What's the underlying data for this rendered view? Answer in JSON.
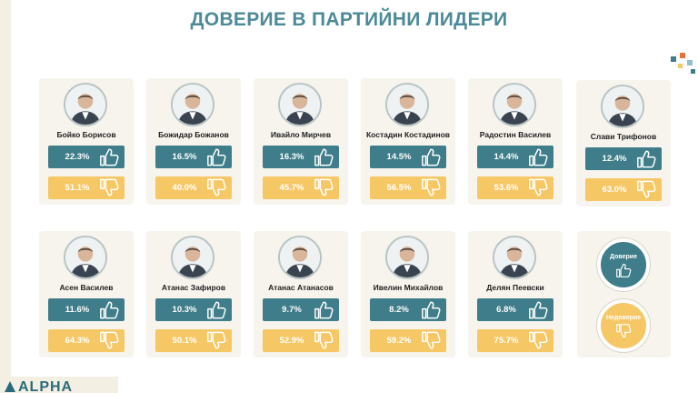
{
  "title": "ДОВЕРИЕ В ПАРТИЙНИ ЛИДЕРИ",
  "chart_data": {
    "type": "table",
    "title": "ДОВЕРИЕ В ПАРТИЙНИ ЛИДЕРИ",
    "columns": [
      "trust",
      "distrust"
    ],
    "leaders": [
      {
        "name": "Бойко Борисов",
        "trust": 22.3,
        "distrust": 51.1,
        "trust_label": "22.3%",
        "distrust_label": "51.1%"
      },
      {
        "name": "Божидар Божанов",
        "trust": 16.5,
        "distrust": 40.0,
        "trust_label": "16.5%",
        "distrust_label": "40.0%"
      },
      {
        "name": "Ивайло Мирчев",
        "trust": 16.3,
        "distrust": 45.7,
        "trust_label": "16.3%",
        "distrust_label": "45.7%"
      },
      {
        "name": "Костадин Костадинов",
        "trust": 14.5,
        "distrust": 56.5,
        "trust_label": "14.5%",
        "distrust_label": "56.5%"
      },
      {
        "name": "Радостин Василев",
        "trust": 14.4,
        "distrust": 53.6,
        "trust_label": "14.4%",
        "distrust_label": "53.6%"
      },
      {
        "name": "Слави Трифонов",
        "trust": 12.4,
        "distrust": 63.0,
        "trust_label": "12.4%",
        "distrust_label": "63.0%"
      },
      {
        "name": "Асен Василев",
        "trust": 11.6,
        "distrust": 64.3,
        "trust_label": "11.6%",
        "distrust_label": "64.3%"
      },
      {
        "name": "Атанас Зафиров",
        "trust": 10.3,
        "distrust": 50.1,
        "trust_label": "10.3%",
        "distrust_label": "50.1%"
      },
      {
        "name": "Атанас Атанасов",
        "trust": 9.7,
        "distrust": 52.9,
        "trust_label": "9.7%",
        "distrust_label": "52.9%"
      },
      {
        "name": "Ивелин Михайлов",
        "trust": 8.2,
        "distrust": 59.2,
        "trust_label": "8.2%",
        "distrust_label": "59.2%"
      },
      {
        "name": "Делян Пеевски",
        "trust": 6.8,
        "distrust": 75.7,
        "trust_label": "6.8%",
        "distrust_label": "75.7%"
      }
    ],
    "legend": {
      "trust_label": "Доверие",
      "distrust_label": "Недоверие",
      "placement": "bottom-right"
    },
    "colors": {
      "trust": "#3e7d89",
      "distrust": "#f6c765",
      "title": "#4d8a98"
    }
  },
  "icons": {
    "trust": "thumbs-up-icon",
    "distrust": "thumbs-down-icon",
    "avatar": "person-portrait-icon"
  },
  "logo": {
    "text": "ALPHA"
  }
}
